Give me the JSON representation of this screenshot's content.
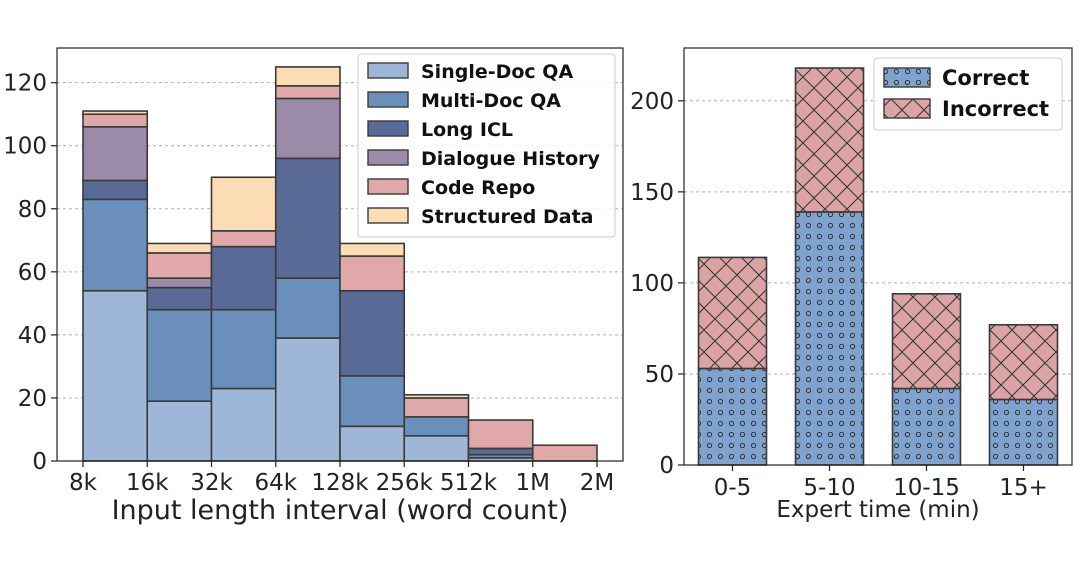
{
  "chart_data": [
    {
      "type": "bar",
      "stacked": true,
      "title": "",
      "xlabel": "Input length interval (word count)",
      "ylabel": "",
      "x_edges": [
        "8k",
        "16k",
        "32k",
        "64k",
        "128k",
        "256k",
        "512k",
        "1M",
        "2M"
      ],
      "ylim": [
        0,
        131
      ],
      "yticks": [
        0,
        20,
        40,
        60,
        80,
        100,
        120
      ],
      "grid": true,
      "legend_position": "top-right",
      "series": [
        {
          "name": "Single-Doc QA",
          "color": "#9eb7d6",
          "values": [
            54,
            19,
            23,
            39,
            11,
            8,
            1,
            0
          ]
        },
        {
          "name": "Multi-Doc QA",
          "color": "#6a8fbb",
          "values": [
            29,
            29,
            25,
            19,
            16,
            6,
            1,
            0
          ]
        },
        {
          "name": "Long ICL",
          "color": "#5a6a97",
          "values": [
            6,
            7,
            20,
            38,
            27,
            0,
            2,
            0
          ]
        },
        {
          "name": "Dialogue History",
          "color": "#9c8ba8",
          "values": [
            17,
            3,
            0,
            19,
            0,
            0,
            0,
            0
          ]
        },
        {
          "name": "Code Repo",
          "color": "#e0a8a8",
          "values": [
            4,
            8,
            5,
            4,
            11,
            6,
            9,
            5
          ]
        },
        {
          "name": "Structured Data",
          "color": "#fbdcb4",
          "values": [
            1,
            3,
            17,
            6,
            4,
            1,
            0,
            0
          ]
        }
      ]
    },
    {
      "type": "bar",
      "stacked": true,
      "title": "",
      "xlabel": "Expert time (min)",
      "ylabel": "",
      "categories": [
        "0-5",
        "5-10",
        "10-15",
        "15+"
      ],
      "ylim": [
        0,
        229
      ],
      "yticks": [
        0,
        50,
        100,
        150,
        200
      ],
      "grid": true,
      "legend_position": "top-right",
      "series": [
        {
          "name": "Correct",
          "color": "#7fa3cf",
          "pattern": "dots",
          "values": [
            53,
            139,
            42,
            36
          ]
        },
        {
          "name": "Incorrect",
          "color": "#dba3a3",
          "pattern": "crosshatch",
          "values": [
            61,
            79,
            52,
            41
          ]
        }
      ]
    }
  ]
}
